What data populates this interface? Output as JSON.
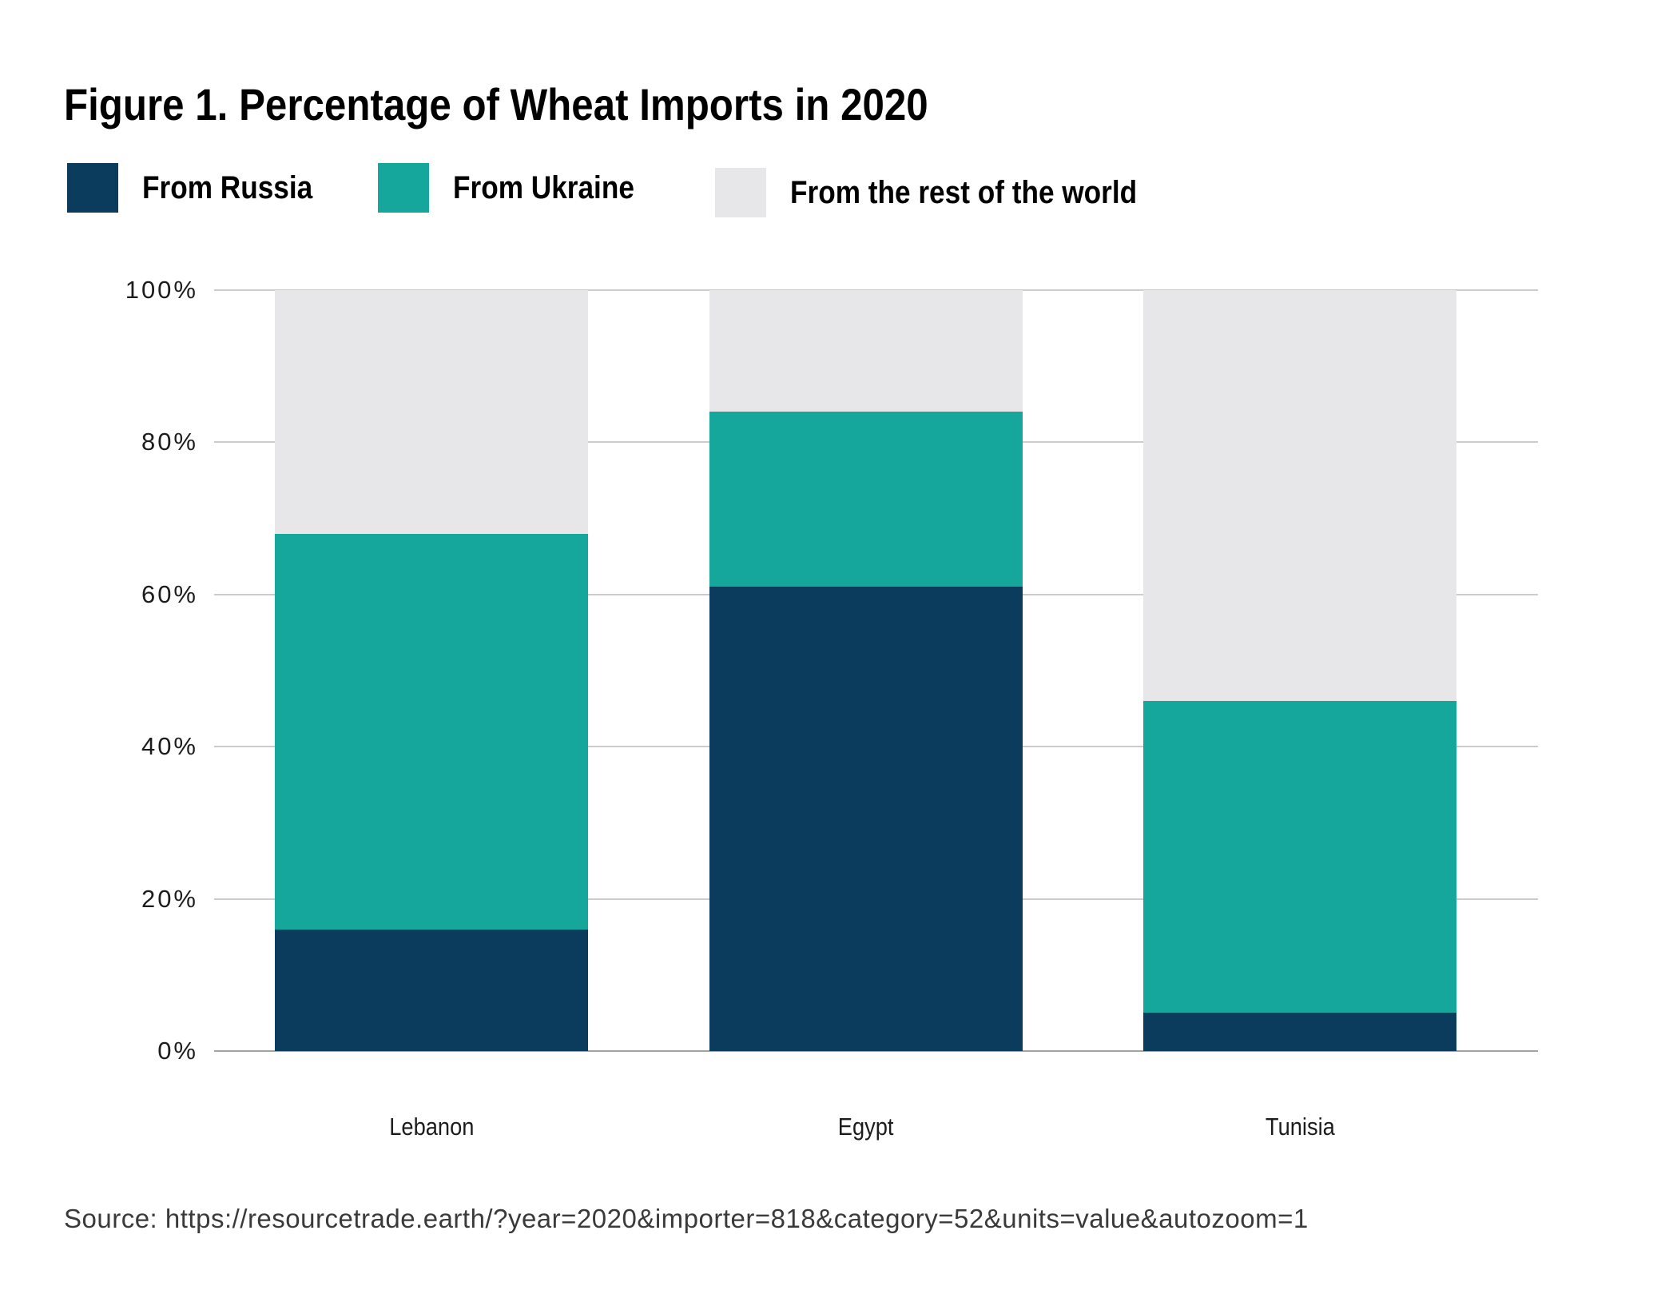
{
  "figure": {
    "title": "Figure 1. Percentage of Wheat Imports in 2020",
    "source_note": "Source: https://resourcetrade.earth/?year=2020&importer=818&category=52&units=value&autozoom=1"
  },
  "legend": [
    {
      "label": "From Russia",
      "color": "#0b3b5d"
    },
    {
      "label": "From Ukraine",
      "color": "#16a79c"
    },
    {
      "label": "From the rest of the world",
      "color": "#e7e7e9"
    }
  ],
  "chart_data": {
    "type": "bar",
    "stacked": true,
    "title": "Figure 1. Percentage of Wheat Imports in 2020",
    "categories": [
      "Lebanon",
      "Egypt",
      "Tunisia"
    ],
    "series": [
      {
        "name": "From Russia",
        "color": "#0b3b5d",
        "values": [
          16,
          61,
          5
        ]
      },
      {
        "name": "From Ukraine",
        "color": "#16a79c",
        "values": [
          52,
          23,
          41
        ]
      },
      {
        "name": "From the rest of the world",
        "color": "#e7e7e9",
        "values": [
          32,
          16,
          54
        ]
      }
    ],
    "xlabel": "",
    "ylabel": "",
    "ylim": [
      0,
      100
    ],
    "yticks": [
      {
        "value": 0,
        "label": "0%"
      },
      {
        "value": 20,
        "label": "20%"
      },
      {
        "value": 40,
        "label": "40%"
      },
      {
        "value": 60,
        "label": "60%"
      },
      {
        "value": 80,
        "label": "80%"
      },
      {
        "value": 100,
        "label": "100%"
      }
    ],
    "grid": true,
    "legend_position": "top",
    "colors_hex": {
      "russia": "#0b3b5d",
      "ukraine": "#16a79c",
      "rest_of_world": "#e7e7e9"
    }
  }
}
